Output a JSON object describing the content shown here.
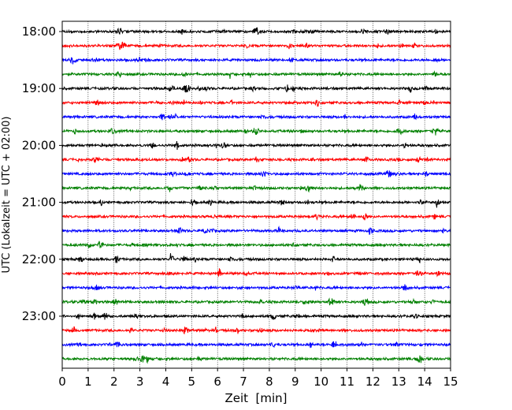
{
  "chart_data": {
    "type": "line",
    "xlabel": "Zeit  [min]",
    "ylabel": "UTC (Lokalzeit = UTC + 02:00)",
    "xlim": [
      0,
      15
    ],
    "x_ticks": [
      "0",
      "1",
      "2",
      "3",
      "4",
      "5",
      "6",
      "7",
      "8",
      "9",
      "10",
      "11",
      "12",
      "13",
      "14",
      "15"
    ],
    "y_ticks": [
      "18:00",
      "19:00",
      "20:00",
      "21:00",
      "22:00",
      "23:00"
    ],
    "grid_x": true,
    "grid_x_style": "dotted",
    "trace_interval_min": 15,
    "trace_colors": [
      "#000000",
      "#ff0000",
      "#0000ff",
      "#008000"
    ],
    "traces": [
      {
        "start": "18:00",
        "color": "#000000"
      },
      {
        "start": "18:15",
        "color": "#ff0000"
      },
      {
        "start": "18:30",
        "color": "#0000ff"
      },
      {
        "start": "18:45",
        "color": "#008000"
      },
      {
        "start": "19:00",
        "color": "#000000"
      },
      {
        "start": "19:15",
        "color": "#ff0000"
      },
      {
        "start": "19:30",
        "color": "#0000ff"
      },
      {
        "start": "19:45",
        "color": "#008000"
      },
      {
        "start": "20:00",
        "color": "#000000"
      },
      {
        "start": "20:15",
        "color": "#ff0000"
      },
      {
        "start": "20:30",
        "color": "#0000ff"
      },
      {
        "start": "20:45",
        "color": "#008000"
      },
      {
        "start": "21:00",
        "color": "#000000"
      },
      {
        "start": "21:15",
        "color": "#ff0000"
      },
      {
        "start": "21:30",
        "color": "#0000ff"
      },
      {
        "start": "21:45",
        "color": "#008000"
      },
      {
        "start": "22:00",
        "color": "#000000"
      },
      {
        "start": "22:15",
        "color": "#ff0000"
      },
      {
        "start": "22:30",
        "color": "#0000ff"
      },
      {
        "start": "22:45",
        "color": "#008000"
      },
      {
        "start": "23:00",
        "color": "#000000"
      },
      {
        "start": "23:15",
        "color": "#ff0000"
      },
      {
        "start": "23:30",
        "color": "#0000ff"
      },
      {
        "start": "23:45",
        "color": "#008000"
      }
    ]
  }
}
